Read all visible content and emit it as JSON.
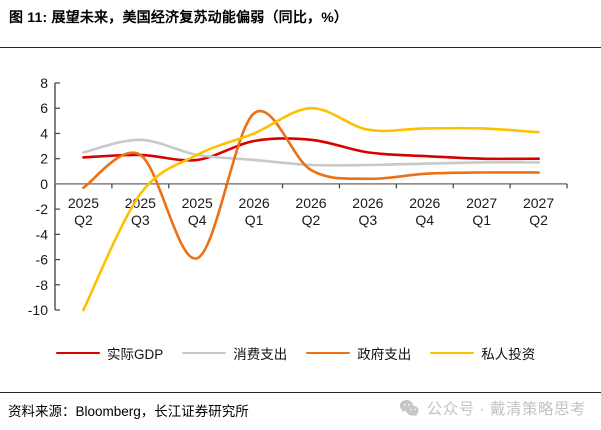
{
  "figure": {
    "title": "图 11: 展望未来，美国经济复苏动能偏弱（同比，%）"
  },
  "footer": {
    "source": "资料来源：Bloomberg，长江证券研究所",
    "watermark_icon": "wechat-icon",
    "watermark_text": "公众号 · 戴清策略思考"
  },
  "chart_data": {
    "type": "line",
    "title": "展望未来，美国经济复苏动能偏弱（同比，%）",
    "categories": [
      "2025 Q2",
      "2025 Q3",
      "2025 Q4",
      "2026 Q1",
      "2026 Q2",
      "2026 Q3",
      "2026 Q4",
      "2027 Q1",
      "2027 Q2"
    ],
    "series": [
      {
        "id": "real-gdp",
        "name": "实际GDP",
        "color": "#d90000",
        "values": [
          2.1,
          2.3,
          1.9,
          3.4,
          3.5,
          2.5,
          2.2,
          2.0,
          2.0
        ]
      },
      {
        "id": "consumption",
        "name": "消费支出",
        "color": "#c9c9c9",
        "values": [
          2.5,
          3.5,
          2.3,
          1.9,
          1.5,
          1.5,
          1.6,
          1.7,
          1.7
        ]
      },
      {
        "id": "government",
        "name": "政府支出",
        "color": "#ed7014",
        "values": [
          -0.3,
          2.3,
          -5.9,
          5.6,
          1.1,
          0.4,
          0.8,
          0.9,
          0.9
        ]
      },
      {
        "id": "investment",
        "name": "私人投资",
        "color": "#ffc000",
        "values": [
          -10.0,
          -0.8,
          2.3,
          4.0,
          6.0,
          4.3,
          4.4,
          4.4,
          4.1
        ]
      }
    ],
    "ylim": [
      -10,
      8
    ],
    "yticks": [
      8,
      6,
      4,
      2,
      0,
      -2,
      -4,
      -6,
      -8,
      -10
    ],
    "xlabel": "",
    "ylabel": "",
    "grid": false,
    "legend_position": "bottom",
    "colors": {
      "axis": "#404040",
      "zero_line": "#7f7f7f",
      "tick_label": "#1a1a1a"
    }
  }
}
